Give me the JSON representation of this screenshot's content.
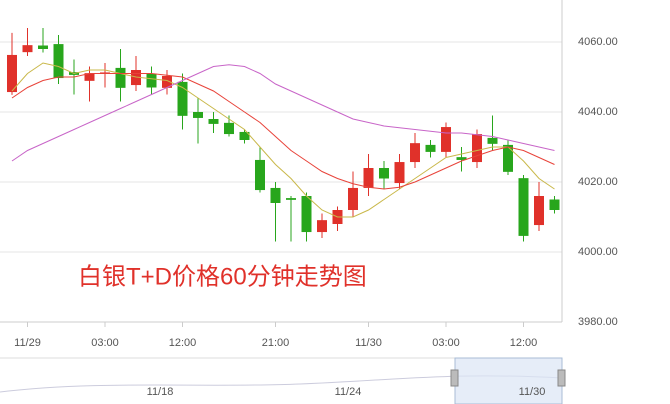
{
  "chart_data": {
    "type": "candlestick",
    "annotation": "白银T+D价格60分钟走势图",
    "categories": [
      null,
      "11/29",
      null,
      null,
      null,
      null,
      "03:00",
      null,
      null,
      null,
      null,
      "12:00",
      null,
      null,
      null,
      null,
      null,
      "21:00",
      null,
      null,
      null,
      null,
      null,
      "11/30",
      null,
      null,
      null,
      null,
      "03:00",
      null,
      null,
      null,
      null,
      "12:00",
      null,
      null
    ],
    "up_color": "#e0312a",
    "down_color": "#28a61c",
    "open": [
      4045.7,
      4057.1,
      4059,
      4059.4,
      4051.4,
      4048.9,
      4051,
      4052.6,
      4047.7,
      4051,
      4046.9,
      4048.6,
      4040,
      4038,
      4036.9,
      4034.3,
      4026.3,
      4018.3,
      4015.4,
      4016,
      4005.7,
      4008,
      4012,
      4018.3,
      4024,
      4019.7,
      4025.7,
      4030.6,
      4028.6,
      4027.1,
      4025.7,
      4032.6,
      4030.6,
      4021.1,
      4007.7,
      4015
    ],
    "high": [
      4062.6,
      4064,
      4064,
      4062,
      4055,
      4053,
      4054,
      4058,
      4056,
      4053,
      4052,
      4051,
      4044,
      4040,
      4039,
      4035,
      4030,
      4020,
      4016,
      4017,
      4011,
      4013,
      4023,
      4028,
      4026,
      4028,
      4034,
      4032,
      4037,
      4030,
      4035,
      4039,
      4032,
      4022,
      4020,
      4016
    ],
    "low": [
      4044.9,
      4056,
      4057,
      4048,
      4045,
      4043,
      4047,
      4043,
      4046,
      4045,
      4045,
      4035,
      4031,
      4034,
      4033,
      4031,
      4017,
      4003,
      4003,
      4003,
      4004,
      4006,
      4010,
      4016,
      4018,
      4018,
      4024,
      4027,
      4027,
      4023,
      4024,
      4029,
      4022,
      4003,
      4006,
      4011
    ],
    "close": [
      4056.3,
      4059.1,
      4058,
      4049.7,
      4050.6,
      4051.1,
      4051.3,
      4046.9,
      4052,
      4047,
      4050.3,
      4038.9,
      4038.3,
      4036.6,
      4033.7,
      4032,
      4017.7,
      4014,
      4014.9,
      4005.7,
      4009.1,
      4012,
      4018.3,
      4024,
      4021,
      4025.7,
      4031.1,
      4028.6,
      4035.7,
      4026.3,
      4033.7,
      4030.9,
      4022.9,
      4004.6,
      4016,
      4012
    ],
    "lines": [
      {
        "color": "#c9b84a",
        "values": [
          4046,
          4051,
          4054,
          4053,
          4051,
          4052,
          4052,
          4051,
          4050,
          4049.5,
          4049,
          4047,
          4044,
          4041,
          4038,
          4035,
          4030,
          4025,
          4021,
          4016,
          4012,
          4010,
          4010,
          4012,
          4015,
          4018,
          4021,
          4024,
          4027,
          4028,
          4029,
          4030,
          4030,
          4026,
          4021,
          4018
        ]
      },
      {
        "color": "#e8433a",
        "values": [
          4044,
          4047,
          4049,
          4050,
          4050,
          4051,
          4051,
          4051,
          4051,
          4051,
          4050.5,
          4050,
          4048,
          4046,
          4043,
          4040,
          4037,
          4033,
          4029,
          4026,
          4023,
          4021,
          4019.5,
          4018.5,
          4018,
          4018.5,
          4020,
          4022,
          4024,
          4026,
          4027.5,
          4029,
          4030,
          4029,
          4027,
          4025
        ]
      },
      {
        "color": "#c865c8",
        "values": [
          4026,
          4029,
          4031,
          4033,
          4035,
          4037,
          4039,
          4041,
          4043,
          4045,
          4047,
          4049,
          4051,
          4053,
          4053.5,
          4053,
          4051,
          4048,
          4046,
          4044,
          4042,
          4040,
          4038,
          4037,
          4036,
          4035.5,
          4035,
          4034.5,
          4034,
          4034,
          4033.5,
          4033,
          4032,
          4031,
          4030,
          4029
        ]
      }
    ],
    "ylim": [
      3980,
      4072
    ],
    "yticks": [
      {
        "value": 3980,
        "label": "3980.00"
      },
      {
        "value": 4000,
        "label": "4000.00"
      },
      {
        "value": 4020,
        "label": "4020.00"
      },
      {
        "value": 4040,
        "label": "4040.00"
      },
      {
        "value": 4060,
        "label": "4060.00"
      }
    ],
    "grid": true,
    "navigator_labels": [
      "11/18",
      "11/24",
      "11/30"
    ]
  }
}
